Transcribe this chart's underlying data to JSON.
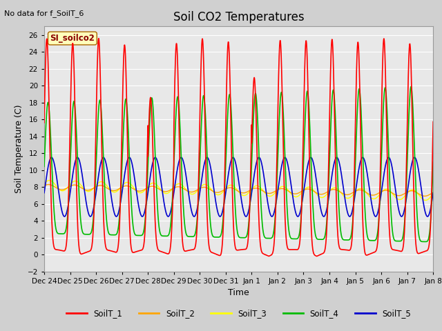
{
  "title": "Soil CO2 Temperatures",
  "xlabel": "Time",
  "ylabel": "Soil Temperature (C)",
  "no_data_label": "No data for f_SoilT_6",
  "site_label": "SI_soilco2",
  "ylim": [
    -2,
    27
  ],
  "yticks": [
    -2,
    0,
    2,
    4,
    6,
    8,
    10,
    12,
    14,
    16,
    18,
    20,
    22,
    24,
    26
  ],
  "x_tick_labels": [
    "Dec 24",
    "Dec 25",
    "Dec 26",
    "Dec 27",
    "Dec 28",
    "Dec 29",
    "Dec 30",
    "Dec 31",
    "Jan 1",
    "Jan 2",
    "Jan 3",
    "Jan 4",
    "Jan 5",
    "Jan 6",
    "Jan 7",
    "Jan 8"
  ],
  "legend_entries": [
    "SoilT_1",
    "SoilT_2",
    "SoilT_3",
    "SoilT_4",
    "SoilT_5"
  ],
  "line_colors": [
    "#ff0000",
    "#ffa500",
    "#ffff00",
    "#00bb00",
    "#0000cc"
  ],
  "fig_facecolor": "#d0d0d0",
  "plot_bg_color": "#e8e8e8",
  "grid_color": "#ffffff",
  "spine_color": "#999999"
}
